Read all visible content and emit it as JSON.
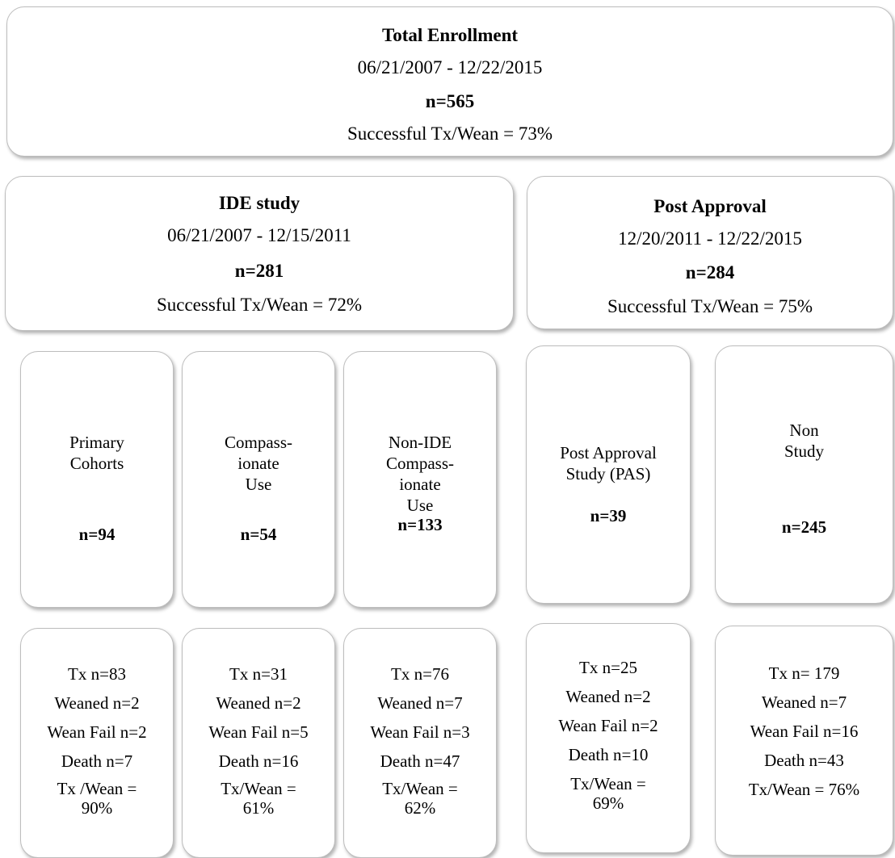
{
  "total": {
    "title": "Total Enrollment",
    "dates": "06/21/2007 - 12/22/2015",
    "n": "n=565",
    "rate": "Successful Tx/Wean = 73%"
  },
  "ide": {
    "title": "IDE study",
    "dates": "06/21/2007 - 12/15/2011",
    "n": "n=281",
    "rate": "Successful Tx/Wean = 72%"
  },
  "post": {
    "title": "Post Approval",
    "dates": "12/20/2011 - 12/22/2015",
    "n": "n=284",
    "rate": "Successful Tx/Wean = 75%"
  },
  "groups": [
    {
      "label_lines": [
        "Primary",
        "Cohorts"
      ],
      "n": "n=94"
    },
    {
      "label_lines": [
        "Compass-",
        "ionate",
        "Use"
      ],
      "n": "n=54"
    },
    {
      "label_lines": [
        "Non-IDE",
        "Compass-",
        "ionate",
        "Use"
      ],
      "n": "n=133"
    },
    {
      "label_lines": [
        "Post Approval",
        "Study (PAS)"
      ],
      "n": "n=39"
    },
    {
      "label_lines": [
        "Non",
        "Study"
      ],
      "n": "n=245"
    }
  ],
  "outcomes": [
    {
      "tx": "Tx n=83",
      "weaned": "Weaned n=2",
      "fail": "Wean Fail n=2",
      "death": "Death n=7",
      "rate_1": "Tx /Wean =",
      "rate_2": "90%"
    },
    {
      "tx": "Tx n=31",
      "weaned": "Weaned n=2",
      "fail": "Wean Fail n=5",
      "death": "Death n=16",
      "rate_1": "Tx/Wean =",
      "rate_2": "61%"
    },
    {
      "tx": "Tx n=76",
      "weaned": "Weaned n=7",
      "fail": "Wean Fail n=3",
      "death": "Death n=47",
      "rate_1": "Tx/Wean =",
      "rate_2": "62%"
    },
    {
      "tx": "Tx n=25",
      "weaned": "Weaned n=2",
      "fail": "Wean Fail n=2",
      "death": "Death n=10",
      "rate_1": "Tx/Wean =",
      "rate_2": "69%"
    },
    {
      "tx": "Tx n= 179",
      "weaned": "Weaned n=7",
      "fail": "Wean Fail n=16",
      "death": "Death n=43",
      "rate_1": "Tx/Wean = 76%",
      "rate_2": ""
    }
  ],
  "colors": {
    "border": "#bdbdbd",
    "text": "#000000",
    "background": "#ffffff"
  }
}
